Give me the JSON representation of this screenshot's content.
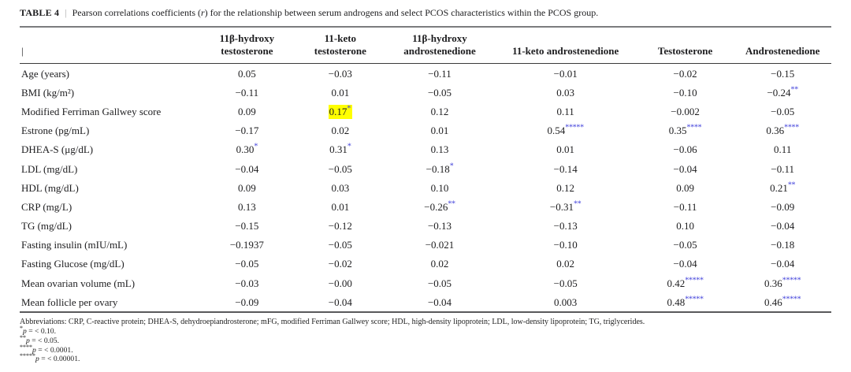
{
  "title": {
    "label": "TABLE 4",
    "separator": "|",
    "caption_parts": [
      "Pearson correlations coefficients (",
      "r",
      ") for the relationship between serum androgens and select PCOS characteristics within the PCOS group."
    ]
  },
  "colors": {
    "significance_blue": "#4343db",
    "highlight_yellow": "#ffff00",
    "rule_gray": "#7b7c7e"
  },
  "table": {
    "corner_label": "|",
    "columns": [
      "11β-hydroxy testosterone",
      "11-keto testosterone",
      "11β-hydroxy androstenedione",
      "11-keto androstenedione",
      "Testosterone",
      "Androstenedione"
    ],
    "rows": [
      {
        "label": "Age (years)",
        "cells": [
          {
            "v": "0.05"
          },
          {
            "v": "−0.03"
          },
          {
            "v": "−0.11"
          },
          {
            "v": "−0.01"
          },
          {
            "v": "−0.02"
          },
          {
            "v": "−0.15"
          }
        ]
      },
      {
        "label": "BMI (kg/m²)",
        "cells": [
          {
            "v": "−0.11"
          },
          {
            "v": "0.01"
          },
          {
            "v": "−0.05"
          },
          {
            "v": "0.03"
          },
          {
            "v": "−0.10"
          },
          {
            "v": "−0.24",
            "s": "**"
          }
        ]
      },
      {
        "label": "Modified Ferriman Gallwey score",
        "cells": [
          {
            "v": "0.09"
          },
          {
            "v": "0.17",
            "s": "*",
            "h": true
          },
          {
            "v": "0.12"
          },
          {
            "v": "0.11"
          },
          {
            "v": "−0.002"
          },
          {
            "v": "−0.05"
          }
        ]
      },
      {
        "label": "Estrone (pg/mL)",
        "cells": [
          {
            "v": "−0.17"
          },
          {
            "v": "0.02"
          },
          {
            "v": "0.01"
          },
          {
            "v": "0.54",
            "s": "*****"
          },
          {
            "v": "0.35",
            "s": "****"
          },
          {
            "v": "0.36",
            "s": "****"
          }
        ]
      },
      {
        "label": "DHEA-S (μg/dL)",
        "cells": [
          {
            "v": "0.30",
            "s": "*"
          },
          {
            "v": "0.31",
            "s": "*"
          },
          {
            "v": "0.13"
          },
          {
            "v": "0.01"
          },
          {
            "v": "−0.06"
          },
          {
            "v": "0.11"
          }
        ]
      },
      {
        "label": "LDL (mg/dL)",
        "cells": [
          {
            "v": "−0.04"
          },
          {
            "v": "−0.05"
          },
          {
            "v": "−0.18",
            "s": "*"
          },
          {
            "v": "−0.14"
          },
          {
            "v": "−0.04"
          },
          {
            "v": "−0.11"
          }
        ]
      },
      {
        "label": "HDL (mg/dL)",
        "cells": [
          {
            "v": "0.09"
          },
          {
            "v": "0.03"
          },
          {
            "v": "0.10"
          },
          {
            "v": "0.12"
          },
          {
            "v": "0.09"
          },
          {
            "v": "0.21",
            "s": "**"
          }
        ]
      },
      {
        "label": "CRP (mg/L)",
        "cells": [
          {
            "v": "0.13"
          },
          {
            "v": "0.01"
          },
          {
            "v": "−0.26",
            "s": "**"
          },
          {
            "v": "−0.31",
            "s": "**"
          },
          {
            "v": "−0.11"
          },
          {
            "v": "−0.09"
          }
        ]
      },
      {
        "label": "TG (mg/dL)",
        "cells": [
          {
            "v": "−0.15"
          },
          {
            "v": "−0.12"
          },
          {
            "v": "−0.13"
          },
          {
            "v": "−0.13"
          },
          {
            "v": "0.10"
          },
          {
            "v": "−0.04"
          }
        ]
      },
      {
        "label": "Fasting insulin (mIU/mL)",
        "cells": [
          {
            "v": "−0.1937"
          },
          {
            "v": "−0.05"
          },
          {
            "v": "−0.021"
          },
          {
            "v": "−0.10"
          },
          {
            "v": "−0.05"
          },
          {
            "v": "−0.18"
          }
        ]
      },
      {
        "label": "Fasting Glucose (mg/dL)",
        "cells": [
          {
            "v": "−0.05"
          },
          {
            "v": "−0.02"
          },
          {
            "v": "0.02"
          },
          {
            "v": "0.02"
          },
          {
            "v": "−0.04"
          },
          {
            "v": "−0.04"
          }
        ]
      },
      {
        "label": "Mean ovarian volume (mL)",
        "cells": [
          {
            "v": "−0.03"
          },
          {
            "v": "−0.00"
          },
          {
            "v": "−0.05"
          },
          {
            "v": "−0.05"
          },
          {
            "v": "0.42",
            "s": "*****"
          },
          {
            "v": "0.36",
            "s": "*****"
          }
        ]
      },
      {
        "label": "Mean follicle per ovary",
        "cells": [
          {
            "v": "−0.09"
          },
          {
            "v": "−0.04"
          },
          {
            "v": "−0.04"
          },
          {
            "v": "0.003"
          },
          {
            "v": "0.48",
            "s": "*****"
          },
          {
            "v": "0.46",
            "s": "*****"
          }
        ]
      }
    ]
  },
  "footnotes": {
    "abbreviations": "Abbreviations: CRP, C-reactive protein; DHEA-S, dehydroepiandrosterone; mFG, modified Ferriman Gallwey score; HDL, high-density lipoprotein; LDL, low-density lipoprotein; TG, triglycerides.",
    "significance": [
      {
        "stars": "*",
        "text": "= < 0.10."
      },
      {
        "stars": "**",
        "text": "= < 0.05."
      },
      {
        "stars": "****",
        "text": "= < 0.0001."
      },
      {
        "stars": "*****",
        "text": "= < 0.00001."
      }
    ]
  }
}
